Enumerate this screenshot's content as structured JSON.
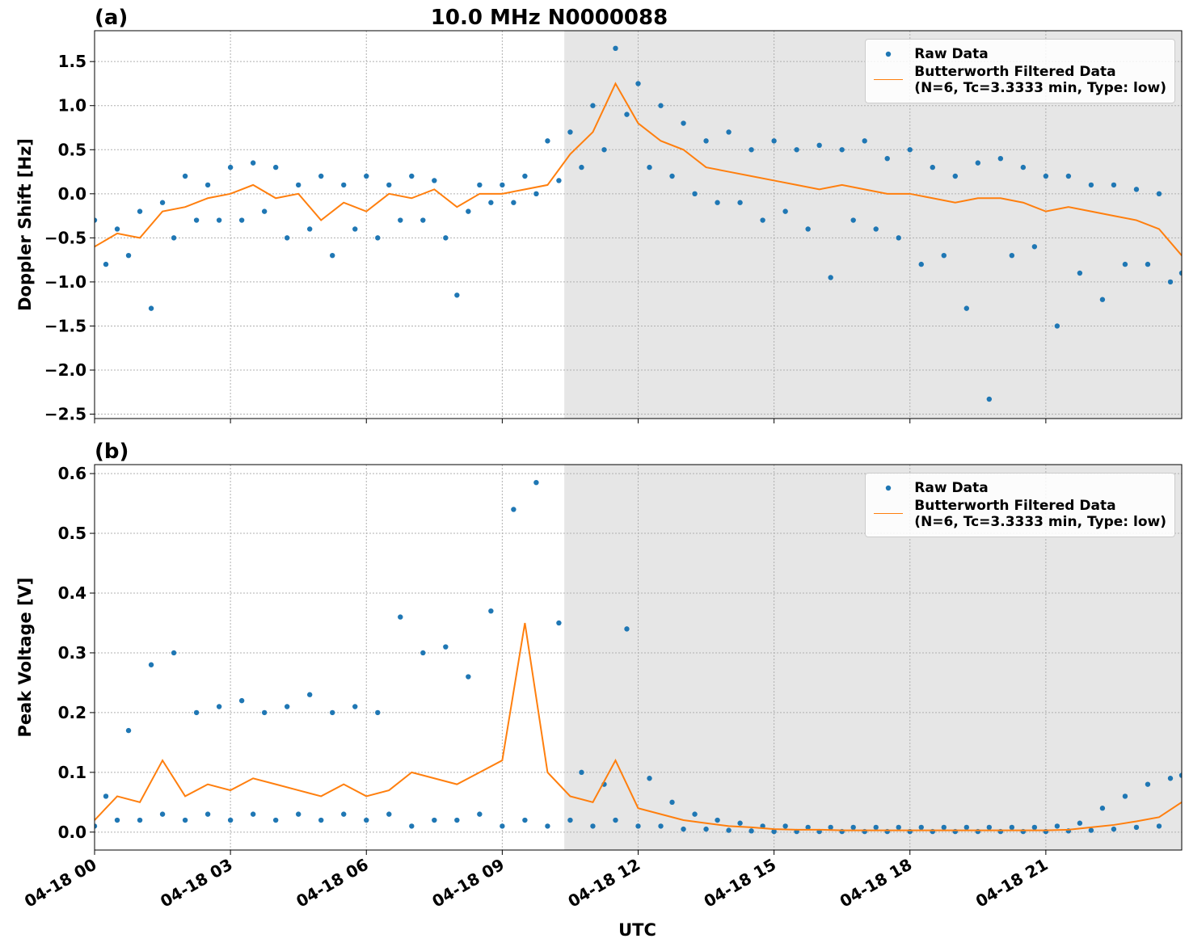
{
  "chart_data": [
    {
      "type": "line",
      "title": "10.0 MHz N0000088",
      "panel_label": "(a)",
      "ylabel": "Doppler Shift [Hz]",
      "xlim": [
        0,
        24
      ],
      "ylim": [
        -2.55,
        1.85
      ],
      "grid": true,
      "legend": "upper right",
      "shade_x": [
        10.37,
        24
      ],
      "xticks": [
        0,
        3,
        6,
        9,
        12,
        15,
        18,
        21
      ],
      "yticks": [
        {
          "value": -2.5,
          "label": "−2.5"
        },
        {
          "value": -2.0,
          "label": "−2.0"
        },
        {
          "value": -1.5,
          "label": "−1.5"
        },
        {
          "value": -1.0,
          "label": "−1.0"
        },
        {
          "value": -0.5,
          "label": "−0.5"
        },
        {
          "value": 0,
          "label": "0.0"
        },
        0.5,
        {
          "value": 1,
          "label": "1.0"
        },
        1.5
      ],
      "series": [
        {
          "name": "Raw Data",
          "color": "#1f77b4",
          "marker": true,
          "x": [
            0,
            0.25,
            0.5,
            0.75,
            1,
            1.25,
            1.5,
            1.75,
            2,
            2.25,
            2.5,
            2.75,
            3,
            3.25,
            3.5,
            3.75,
            4,
            4.25,
            4.5,
            4.75,
            5,
            5.25,
            5.5,
            5.75,
            6,
            6.25,
            6.5,
            6.75,
            7,
            7.25,
            7.5,
            7.75,
            8,
            8.25,
            8.5,
            8.75,
            9,
            9.25,
            9.5,
            9.75,
            10,
            10.25,
            10.5,
            10.75,
            11,
            11.25,
            11.5,
            11.75,
            12,
            12.25,
            12.5,
            12.75,
            13,
            13.25,
            13.5,
            13.75,
            14,
            14.25,
            14.5,
            14.75,
            15,
            15.25,
            15.5,
            15.75,
            16,
            16.25,
            16.5,
            16.75,
            17,
            17.25,
            17.5,
            17.75,
            18,
            18.25,
            18.5,
            18.75,
            19,
            19.25,
            19.5,
            19.75,
            20,
            20.25,
            20.5,
            20.75,
            21,
            21.25,
            21.5,
            21.75,
            22,
            22.25,
            22.5,
            22.75,
            23,
            23.25,
            23.5,
            23.75,
            24
          ],
          "values": [
            -0.3,
            -0.8,
            -0.4,
            -0.7,
            -0.2,
            -1.3,
            -0.1,
            -0.5,
            0.2,
            -0.3,
            0.1,
            -0.3,
            0.3,
            -0.3,
            0.35,
            -0.2,
            0.3,
            -0.5,
            0.1,
            -0.4,
            0.2,
            -0.7,
            0.1,
            -0.4,
            0.2,
            -0.5,
            0.1,
            -0.3,
            0.2,
            -0.3,
            0.15,
            -0.5,
            -1.15,
            -0.2,
            0.1,
            -0.1,
            0.1,
            -0.1,
            0.2,
            0.0,
            0.6,
            0.15,
            0.7,
            0.3,
            1.0,
            0.5,
            1.65,
            0.9,
            1.25,
            0.3,
            1.0,
            0.2,
            0.8,
            0.0,
            0.6,
            -0.1,
            0.7,
            -0.1,
            0.5,
            -0.3,
            0.6,
            -0.2,
            0.5,
            -0.4,
            0.55,
            -0.95,
            0.5,
            -0.3,
            0.6,
            -0.4,
            0.4,
            -0.5,
            0.5,
            -0.8,
            0.3,
            -0.7,
            0.2,
            -1.3,
            0.35,
            -2.33,
            0.4,
            -0.7,
            0.3,
            -0.6,
            0.2,
            -1.5,
            0.2,
            -0.9,
            0.1,
            -1.2,
            0.1,
            -0.8,
            0.05,
            -0.8,
            0.0,
            -1.0,
            -0.9
          ]
        },
        {
          "name": "Butterworth Filtered Data\n(N=6, Tc=3.3333 min, Type: low)",
          "color": "#ff7f0e",
          "marker": false,
          "x": [
            0,
            0.5,
            1,
            1.5,
            2,
            2.5,
            3,
            3.5,
            4,
            4.5,
            5,
            5.5,
            6,
            6.5,
            7,
            7.5,
            8,
            8.5,
            9,
            9.5,
            10,
            10.5,
            11,
            11.5,
            12,
            12.5,
            13,
            13.5,
            14,
            14.5,
            15,
            15.5,
            16,
            16.5,
            17,
            17.5,
            18,
            18.5,
            19,
            19.5,
            20,
            20.5,
            21,
            21.5,
            22,
            22.5,
            23,
            23.5,
            24
          ],
          "values": [
            -0.6,
            -0.45,
            -0.5,
            -0.2,
            -0.15,
            -0.05,
            0.0,
            0.1,
            -0.05,
            0.0,
            -0.3,
            -0.1,
            -0.2,
            0.0,
            -0.05,
            0.05,
            -0.15,
            0.0,
            0.0,
            0.05,
            0.1,
            0.45,
            0.7,
            1.25,
            0.8,
            0.6,
            0.5,
            0.3,
            0.25,
            0.2,
            0.15,
            0.1,
            0.05,
            0.1,
            0.05,
            0.0,
            0.0,
            -0.05,
            -0.1,
            -0.05,
            -0.05,
            -0.1,
            -0.2,
            -0.15,
            -0.2,
            -0.25,
            -0.3,
            -0.4,
            -0.7
          ]
        }
      ]
    },
    {
      "type": "line",
      "panel_label": "(b)",
      "ylabel": "Peak Voltage [V]",
      "xlabel": "UTC",
      "xlim": [
        0,
        24
      ],
      "ylim": [
        -0.03,
        0.615
      ],
      "grid": true,
      "legend": "upper right",
      "shade_x": [
        10.37,
        24
      ],
      "xticks": [
        {
          "value": 0,
          "label": "04-18 00"
        },
        {
          "value": 3,
          "label": "04-18 03"
        },
        {
          "value": 6,
          "label": "04-18 06"
        },
        {
          "value": 9,
          "label": "04-18 09"
        },
        {
          "value": 12,
          "label": "04-18 12"
        },
        {
          "value": 15,
          "label": "04-18 15"
        },
        {
          "value": 18,
          "label": "04-18 18"
        },
        {
          "value": 21,
          "label": "04-18 21"
        }
      ],
      "yticks": [
        {
          "value": 0,
          "label": "0.0"
        },
        0.1,
        0.2,
        0.3,
        0.4,
        0.5,
        0.6
      ],
      "series": [
        {
          "name": "Raw Data",
          "color": "#1f77b4",
          "marker": true,
          "x": [
            0,
            0.25,
            0.5,
            0.75,
            1,
            1.25,
            1.5,
            1.75,
            2,
            2.25,
            2.5,
            2.75,
            3,
            3.25,
            3.5,
            3.75,
            4,
            4.25,
            4.5,
            4.75,
            5,
            5.25,
            5.5,
            5.75,
            6,
            6.25,
            6.5,
            6.75,
            7,
            7.25,
            7.5,
            7.75,
            8,
            8.25,
            8.5,
            8.75,
            9,
            9.25,
            9.5,
            9.75,
            10,
            10.25,
            10.5,
            10.75,
            11,
            11.25,
            11.5,
            11.75,
            12,
            12.25,
            12.5,
            12.75,
            13,
            13.25,
            13.5,
            13.75,
            14,
            14.25,
            14.5,
            14.75,
            15,
            15.25,
            15.5,
            15.75,
            16,
            16.25,
            16.5,
            16.75,
            17,
            17.25,
            17.5,
            17.75,
            18,
            18.25,
            18.5,
            18.75,
            19,
            19.25,
            19.5,
            19.75,
            20,
            20.25,
            20.5,
            20.75,
            21,
            21.25,
            21.5,
            21.75,
            22,
            22.25,
            22.5,
            22.75,
            23,
            23.25,
            23.5,
            23.75,
            24
          ],
          "values": [
            0.01,
            0.06,
            0.02,
            0.17,
            0.02,
            0.28,
            0.03,
            0.3,
            0.02,
            0.2,
            0.03,
            0.21,
            0.02,
            0.22,
            0.03,
            0.2,
            0.02,
            0.21,
            0.03,
            0.23,
            0.02,
            0.2,
            0.03,
            0.21,
            0.02,
            0.2,
            0.03,
            0.36,
            0.01,
            0.3,
            0.02,
            0.31,
            0.02,
            0.26,
            0.03,
            0.37,
            0.01,
            0.54,
            0.02,
            0.585,
            0.01,
            0.35,
            0.02,
            0.1,
            0.01,
            0.08,
            0.02,
            0.34,
            0.01,
            0.09,
            0.01,
            0.05,
            0.005,
            0.03,
            0.005,
            0.02,
            0.003,
            0.015,
            0.002,
            0.01,
            0.001,
            0.01,
            0.001,
            0.008,
            0.001,
            0.008,
            0.001,
            0.008,
            0.001,
            0.008,
            0.001,
            0.008,
            0.001,
            0.008,
            0.001,
            0.008,
            0.001,
            0.008,
            0.001,
            0.008,
            0.001,
            0.008,
            0.001,
            0.008,
            0.001,
            0.01,
            0.002,
            0.015,
            0.003,
            0.04,
            0.005,
            0.06,
            0.008,
            0.08,
            0.01,
            0.09,
            0.095
          ]
        },
        {
          "name": "Butterworth Filtered Data\n(N=6, Tc=3.3333 min, Type: low)",
          "color": "#ff7f0e",
          "marker": false,
          "x": [
            0,
            0.5,
            1,
            1.5,
            2,
            2.5,
            3,
            3.5,
            4,
            4.5,
            5,
            5.5,
            6,
            6.5,
            7,
            7.5,
            8,
            8.5,
            9,
            9.5,
            10,
            10.5,
            11,
            11.5,
            12,
            12.5,
            13,
            13.5,
            14,
            14.5,
            15,
            15.5,
            16,
            16.5,
            17,
            17.5,
            18,
            18.5,
            19,
            19.5,
            20,
            20.5,
            21,
            21.5,
            22,
            22.5,
            23,
            23.5,
            24
          ],
          "values": [
            0.02,
            0.06,
            0.05,
            0.12,
            0.06,
            0.08,
            0.07,
            0.09,
            0.08,
            0.07,
            0.06,
            0.08,
            0.06,
            0.07,
            0.1,
            0.09,
            0.08,
            0.1,
            0.12,
            0.35,
            0.1,
            0.06,
            0.05,
            0.12,
            0.04,
            0.03,
            0.02,
            0.015,
            0.01,
            0.008,
            0.005,
            0.004,
            0.004,
            0.003,
            0.003,
            0.003,
            0.003,
            0.003,
            0.003,
            0.003,
            0.003,
            0.003,
            0.003,
            0.004,
            0.008,
            0.012,
            0.018,
            0.025,
            0.05
          ]
        }
      ]
    }
  ]
}
